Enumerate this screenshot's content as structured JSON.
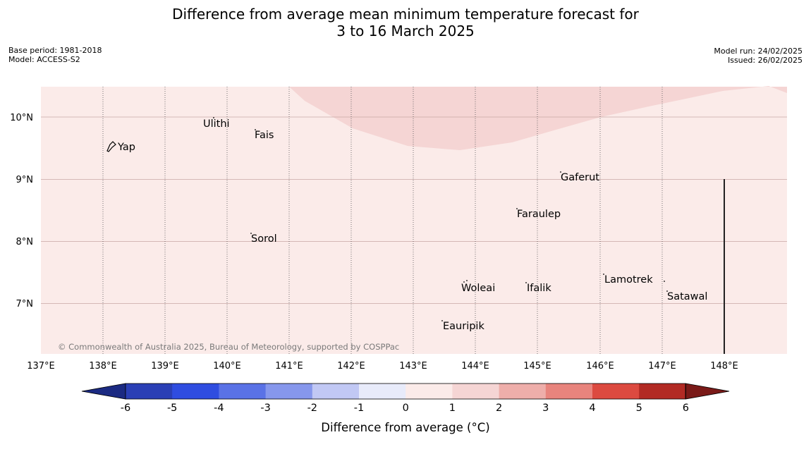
{
  "title": {
    "line1": "Difference from average mean minimum temperature forecast for",
    "line2": "3 to 16 March 2025"
  },
  "meta": {
    "base_period": "Base period: 1981-2018",
    "model": "Model: ACCESS-S2",
    "model_run": "Model run: 24/02/2025",
    "issued": "Issued: 26/02/2025"
  },
  "map": {
    "lon_labels": [
      "137°E",
      "138°E",
      "139°E",
      "140°E",
      "141°E",
      "142°E",
      "143°E",
      "144°E",
      "145°E",
      "146°E",
      "147°E",
      "148°E"
    ],
    "lat_labels": [
      "10°N",
      "9°N",
      "8°N",
      "7°N"
    ],
    "places": [
      "Yap",
      "Ulithi",
      "Fais",
      "Gaferut",
      "Faraulep",
      "Sorol",
      "Lamotrek",
      "Woleai",
      "Ifalik",
      "Satawal",
      "Eauripik"
    ],
    "copyright": "© Commonwealth of Australia 2025, Bureau of Meteorology, supported by COSPPac",
    "background_fill": "#fbebe9",
    "anomaly_fill": "#f5d5d4",
    "background_class": "0 to 1",
    "anomaly_class": "1 to 2"
  },
  "colorbar": {
    "ticks": [
      "-6",
      "-5",
      "-4",
      "-3",
      "-2",
      "-1",
      "0",
      "1",
      "2",
      "3",
      "4",
      "5",
      "6"
    ],
    "label": "Difference from average (°C)",
    "colors": [
      "#1b2a82",
      "#2a3fb5",
      "#2f4de0",
      "#5a72e6",
      "#8697ec",
      "#c1c8f4",
      "#e8ebfa",
      "#fbebe9",
      "#f5d5d4",
      "#eeaeaa",
      "#e8847d",
      "#dc4a40",
      "#b22a24",
      "#7a1a18"
    ]
  }
}
